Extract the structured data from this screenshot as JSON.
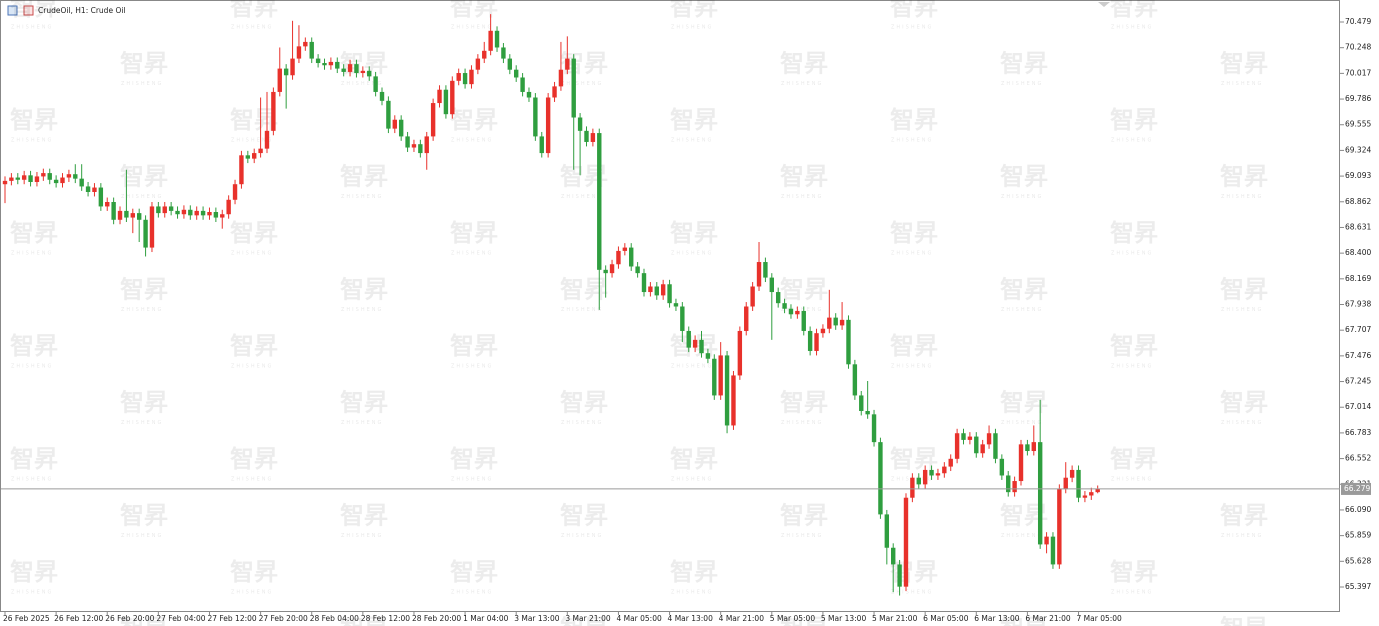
{
  "chart_data": {
    "type": "candlestick",
    "title": "CrudeOil, H1:  Crude Oil",
    "watermark": "智昇",
    "watermark_sub": "ZHISHENG",
    "up_color": "#e8312b",
    "down_color": "#2f9e3f",
    "current_price": 66.279,
    "ylim": [
      65.181,
      70.677
    ],
    "yticks": [
      70.479,
      70.248,
      70.017,
      69.786,
      69.555,
      69.324,
      69.093,
      68.862,
      68.631,
      {
        "value": 68.4,
        "label": "68.400"
      },
      68.169,
      67.938,
      67.707,
      67.476,
      67.245,
      67.014,
      66.783,
      66.552,
      66.321,
      {
        "value": 66.09,
        "label": "66.090"
      },
      65.859,
      65.628,
      65.397
    ],
    "xticks": [
      {
        "value": 0,
        "label": "26 Feb 2025"
      },
      {
        "value": 8,
        "label": "26 Feb 12:00"
      },
      {
        "value": 16,
        "label": "26 Feb 20:00"
      },
      {
        "value": 24,
        "label": "27 Feb 04:00"
      },
      {
        "value": 32,
        "label": "27 Feb 12:00"
      },
      {
        "value": 40,
        "label": "27 Feb 20:00"
      },
      {
        "value": 48,
        "label": "28 Feb 04:00"
      },
      {
        "value": 56,
        "label": "28 Feb 12:00"
      },
      {
        "value": 64,
        "label": "28 Feb 20:00"
      },
      {
        "value": 72,
        "label": "1 Mar 04:00"
      },
      {
        "value": 80,
        "label": "3 Mar 13:00"
      },
      {
        "value": 88,
        "label": "3 Mar 21:00"
      },
      {
        "value": 96,
        "label": "4 Mar 05:00"
      },
      {
        "value": 104,
        "label": "4 Mar 13:00"
      },
      {
        "value": 112,
        "label": "4 Mar 21:00"
      },
      {
        "value": 120,
        "label": "5 Mar 05:00"
      },
      {
        "value": 128,
        "label": "5 Mar 13:00"
      },
      {
        "value": 136,
        "label": "5 Mar 21:00"
      },
      {
        "value": 144,
        "label": "6 Mar 05:00"
      },
      {
        "value": 152,
        "label": "6 Mar 13:00"
      },
      {
        "value": 160,
        "label": "6 Mar 21:00"
      },
      {
        "value": 168,
        "label": "7 Mar 05:00"
      }
    ],
    "open": [
      69.02,
      69.05,
      69.08,
      69.06,
      69.1,
      69.04,
      69.09,
      69.12,
      69.06,
      69.03,
      69.08,
      69.11,
      69.07,
      69.0,
      68.95,
      68.99,
      68.82,
      68.86,
      68.7,
      68.78,
      68.72,
      68.76,
      68.7,
      68.45,
      68.82,
      68.76,
      68.82,
      68.78,
      68.75,
      68.79,
      68.74,
      68.78,
      68.74,
      68.77,
      68.72,
      68.75,
      68.88,
      69.02,
      69.28,
      69.25,
      69.3,
      69.34,
      69.5,
      69.85,
      70.06,
      70.0,
      70.15,
      70.26,
      70.3,
      70.15,
      70.11,
      70.09,
      70.12,
      70.06,
      70.03,
      70.1,
      70.02,
      70.04,
      69.99,
      69.85,
      69.77,
      69.52,
      69.6,
      69.45,
      69.35,
      69.38,
      69.3,
      69.45,
      69.75,
      69.87,
      69.65,
      69.95,
      70.02,
      69.92,
      70.05,
      70.15,
      70.22,
      70.4,
      70.25,
      70.15,
      70.05,
      69.98,
      69.85,
      69.8,
      69.45,
      69.3,
      69.8,
      69.9,
      70.05,
      70.15,
      69.62,
      69.5,
      69.4,
      69.48,
      68.25,
      68.22,
      68.3,
      68.42,
      68.45,
      68.28,
      68.22,
      68.05,
      68.1,
      68.02,
      68.12,
      67.95,
      67.92,
      67.7,
      67.55,
      67.62,
      67.5,
      67.45,
      67.12,
      67.48,
      66.85,
      67.3,
      67.7,
      67.92,
      68.1,
      68.32,
      68.18,
      68.05,
      67.95,
      67.9,
      67.85,
      67.88,
      67.7,
      67.52,
      67.68,
      67.72,
      67.82,
      67.75,
      67.8,
      67.4,
      67.12,
      66.98,
      66.95,
      66.7,
      66.05,
      65.75,
      65.6,
      65.4,
      66.2,
      66.38,
      66.32,
      66.45,
      66.4,
      66.42,
      66.48,
      66.55,
      66.78,
      66.72,
      66.75,
      66.6,
      66.68,
      66.78,
      66.55,
      66.4,
      66.25,
      66.35,
      66.68,
      66.62,
      66.7,
      65.78,
      65.85,
      65.6,
      66.28,
      66.38,
      66.45,
      66.2,
      66.22,
      66.25
    ],
    "high": [
      69.09,
      69.12,
      69.12,
      69.14,
      69.14,
      69.13,
      69.16,
      69.16,
      69.1,
      69.12,
      69.15,
      69.2,
      69.2,
      69.04,
      69.03,
      69.03,
      68.9,
      68.9,
      68.82,
      69.15,
      68.8,
      68.8,
      68.74,
      68.86,
      68.86,
      68.86,
      68.86,
      68.82,
      68.83,
      68.83,
      68.82,
      68.82,
      68.81,
      68.81,
      68.79,
      68.92,
      69.06,
      69.32,
      69.32,
      69.34,
      69.8,
      69.85,
      69.89,
      70.25,
      70.1,
      70.49,
      70.45,
      70.34,
      70.34,
      70.19,
      70.15,
      70.16,
      70.16,
      70.1,
      70.14,
      70.14,
      70.08,
      70.08,
      70.03,
      69.89,
      69.81,
      69.64,
      69.64,
      69.49,
      69.42,
      69.42,
      69.49,
      69.79,
      69.91,
      69.91,
      69.99,
      70.06,
      70.06,
      70.09,
      70.19,
      70.3,
      70.55,
      70.44,
      70.29,
      70.19,
      70.09,
      70.02,
      69.89,
      69.84,
      69.49,
      69.84,
      69.94,
      70.3,
      70.35,
      70.19,
      69.66,
      69.54,
      69.52,
      69.52,
      68.29,
      68.34,
      68.46,
      68.49,
      68.49,
      68.32,
      68.26,
      68.14,
      68.14,
      68.16,
      68.16,
      67.99,
      67.96,
      67.74,
      67.66,
      67.7,
      67.54,
      67.49,
      67.6,
      67.52,
      67.34,
      67.74,
      67.96,
      68.14,
      68.5,
      68.36,
      68.22,
      68.09,
      67.99,
      67.94,
      67.92,
      67.92,
      67.74,
      67.72,
      67.76,
      68.07,
      67.86,
      67.96,
      67.84,
      67.44,
      67.16,
      67.25,
      66.99,
      66.74,
      66.09,
      65.79,
      65.64,
      66.24,
      66.42,
      66.42,
      66.49,
      66.49,
      66.46,
      66.52,
      66.59,
      66.82,
      66.82,
      66.79,
      66.79,
      66.72,
      66.85,
      66.82,
      66.59,
      66.44,
      66.39,
      66.72,
      66.72,
      66.85,
      67.08,
      65.89,
      65.89,
      66.32,
      66.52,
      66.49,
      66.49,
      66.26,
      66.29,
      66.31
    ],
    "low": [
      68.85,
      69.01,
      69.02,
      69.02,
      69.0,
      69.0,
      69.05,
      69.02,
      68.99,
      68.99,
      69.04,
      69.03,
      68.96,
      68.91,
      68.91,
      68.78,
      68.78,
      68.66,
      68.66,
      68.68,
      68.58,
      68.5,
      68.37,
      68.41,
      68.72,
      68.72,
      68.74,
      68.71,
      68.71,
      68.7,
      68.7,
      68.7,
      68.7,
      68.68,
      68.62,
      68.71,
      68.84,
      68.98,
      69.21,
      69.21,
      69.26,
      69.3,
      69.46,
      69.81,
      69.7,
      69.96,
      70.11,
      70.22,
      70.11,
      70.07,
      70.05,
      70.05,
      70.02,
      69.99,
      69.99,
      69.98,
      69.98,
      69.95,
      69.81,
      69.73,
      69.48,
      69.48,
      69.41,
      69.31,
      69.31,
      69.26,
      69.15,
      69.41,
      69.71,
      69.61,
      69.61,
      69.91,
      69.88,
      69.88,
      70.01,
      70.11,
      70.18,
      70.21,
      70.11,
      70.01,
      69.94,
      69.81,
      69.76,
      69.41,
      69.26,
      69.26,
      69.76,
      69.86,
      70.01,
      69.15,
      69.1,
      69.36,
      69.36,
      67.89,
      68.0,
      68.18,
      68.26,
      68.38,
      68.24,
      68.18,
      68.01,
      68.01,
      67.98,
      67.98,
      67.91,
      67.88,
      67.6,
      67.51,
      67.51,
      67.46,
      67.41,
      67.08,
      67.08,
      66.78,
      66.81,
      67.26,
      67.66,
      67.88,
      68.06,
      68.14,
      67.62,
      67.91,
      67.86,
      67.81,
      67.81,
      67.66,
      67.48,
      67.48,
      67.64,
      67.68,
      67.71,
      67.71,
      67.36,
      67.08,
      66.94,
      66.91,
      66.66,
      66.01,
      65.6,
      65.35,
      65.32,
      65.36,
      66.16,
      66.28,
      66.28,
      66.36,
      66.36,
      66.38,
      66.44,
      66.51,
      66.68,
      66.68,
      66.56,
      66.56,
      66.64,
      66.51,
      66.36,
      66.21,
      66.21,
      66.31,
      66.58,
      66.58,
      65.74,
      65.7,
      65.56,
      65.56,
      66.24,
      66.34,
      66.16,
      66.16,
      66.18,
      66.24
    ],
    "close": [
      69.05,
      69.08,
      69.06,
      69.1,
      69.04,
      69.09,
      69.12,
      69.06,
      69.03,
      69.08,
      69.11,
      69.07,
      69.0,
      68.95,
      68.99,
      68.82,
      68.86,
      68.7,
      68.78,
      68.72,
      68.76,
      68.7,
      68.45,
      68.82,
      68.76,
      68.82,
      68.78,
      68.75,
      68.79,
      68.74,
      68.78,
      68.74,
      68.77,
      68.72,
      68.75,
      68.88,
      69.02,
      69.28,
      69.25,
      69.3,
      69.34,
      69.5,
      69.85,
      70.06,
      70.0,
      70.15,
      70.26,
      70.3,
      70.15,
      70.11,
      70.09,
      70.12,
      70.06,
      70.03,
      70.1,
      70.02,
      70.04,
      69.99,
      69.85,
      69.77,
      69.52,
      69.6,
      69.45,
      69.35,
      69.38,
      69.3,
      69.45,
      69.75,
      69.87,
      69.65,
      69.95,
      70.02,
      69.92,
      70.05,
      70.15,
      70.22,
      70.4,
      70.25,
      70.15,
      70.05,
      69.98,
      69.85,
      69.8,
      69.45,
      69.3,
      69.8,
      69.9,
      70.05,
      70.15,
      69.62,
      69.5,
      69.4,
      69.48,
      68.25,
      68.22,
      68.3,
      68.42,
      68.45,
      68.28,
      68.22,
      68.05,
      68.1,
      68.02,
      68.12,
      67.95,
      67.92,
      67.7,
      67.55,
      67.62,
      67.5,
      67.45,
      67.12,
      67.48,
      66.85,
      67.3,
      67.7,
      67.92,
      68.1,
      68.32,
      68.18,
      68.05,
      67.95,
      67.9,
      67.85,
      67.88,
      67.7,
      67.52,
      67.68,
      67.72,
      67.82,
      67.75,
      67.8,
      67.4,
      67.12,
      66.98,
      66.95,
      66.7,
      66.05,
      65.75,
      65.6,
      65.4,
      66.2,
      66.38,
      66.32,
      66.45,
      66.4,
      66.42,
      66.48,
      66.55,
      66.78,
      66.72,
      66.75,
      66.6,
      66.68,
      66.78,
      66.55,
      66.4,
      66.25,
      66.35,
      66.68,
      66.62,
      66.7,
      65.78,
      65.85,
      65.6,
      66.28,
      66.38,
      66.45,
      66.2,
      66.22,
      66.25,
      66.28
    ]
  }
}
